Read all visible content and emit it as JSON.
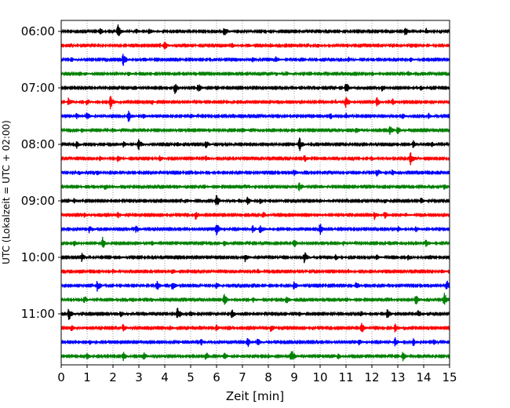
{
  "chart_data": {
    "type": "line",
    "xlabel": "Zeit  [min]",
    "ylabel": "UTC (Lokalzeit = UTC + 02:00)",
    "xlim": [
      0,
      15
    ],
    "x_ticks": [
      "0",
      "1",
      "2",
      "3",
      "4",
      "5",
      "6",
      "7",
      "8",
      "9",
      "10",
      "11",
      "12",
      "13",
      "14",
      "15"
    ],
    "x_grid": "vertical dotted lines at each minute",
    "y_ticks": [
      "06:00",
      "07:00",
      "08:00",
      "09:00",
      "10:00",
      "11:00"
    ],
    "rows_start": "06:00",
    "row_interval_minutes": 15,
    "row_count": 24,
    "color_cycle": [
      "#000000",
      "#ff0000",
      "#0000ff",
      "#008000"
    ],
    "series": [
      {
        "start": "06:00",
        "events": [
          [
            1.5,
            0.5
          ],
          [
            2.2,
            1.0
          ],
          [
            2.9,
            0.3
          ],
          [
            3.4,
            0.4
          ],
          [
            6.3,
            0.7
          ],
          [
            13.3,
            0.6
          ],
          [
            14.1,
            0.4
          ]
        ]
      },
      {
        "start": "06:15",
        "events": [
          [
            3.8,
            0.3
          ],
          [
            4.0,
            0.5
          ],
          [
            6.6,
            0.3
          ],
          [
            7.2,
            0.25
          ],
          [
            8.1,
            0.3
          ],
          [
            9.9,
            0.3
          ]
        ]
      },
      {
        "start": "06:30",
        "events": [
          [
            0.4,
            0.3
          ],
          [
            2.4,
            0.8
          ],
          [
            3.2,
            0.3
          ],
          [
            7.4,
            0.3
          ],
          [
            8.3,
            0.4
          ],
          [
            11.1,
            0.3
          ],
          [
            13.5,
            0.3
          ]
        ]
      },
      {
        "start": "06:45",
        "events": [
          [
            0.9,
            0.3
          ],
          [
            2.6,
            0.3
          ],
          [
            8.3,
            0.25
          ],
          [
            8.7,
            0.3
          ],
          [
            12.0,
            0.3
          ],
          [
            13.4,
            0.3
          ]
        ]
      },
      {
        "start": "07:00",
        "events": [
          [
            4.4,
            0.8
          ],
          [
            5.3,
            0.6
          ],
          [
            6.0,
            0.4
          ],
          [
            11.0,
            0.9
          ],
          [
            12.4,
            0.5
          ],
          [
            13.9,
            0.3
          ]
        ]
      },
      {
        "start": "07:15",
        "events": [
          [
            0.3,
            0.7
          ],
          [
            1.0,
            0.4
          ],
          [
            1.9,
            1.0
          ],
          [
            3.5,
            0.4
          ],
          [
            6.4,
            0.3
          ],
          [
            10.6,
            0.3
          ],
          [
            11.0,
            0.9
          ],
          [
            12.2,
            0.6
          ],
          [
            12.8,
            0.5
          ]
        ]
      },
      {
        "start": "07:30",
        "events": [
          [
            0.6,
            0.4
          ],
          [
            1.0,
            0.5
          ],
          [
            2.6,
            0.8
          ],
          [
            3.2,
            0.3
          ],
          [
            5.0,
            0.3
          ],
          [
            10.4,
            0.4
          ],
          [
            11.0,
            0.5
          ],
          [
            13.2,
            0.3
          ],
          [
            14.2,
            0.4
          ]
        ]
      },
      {
        "start": "07:45",
        "events": [
          [
            0.8,
            0.3
          ],
          [
            2.0,
            0.3
          ],
          [
            7.0,
            0.3
          ],
          [
            11.4,
            0.4
          ],
          [
            12.7,
            0.6
          ],
          [
            13.0,
            0.5
          ]
        ]
      },
      {
        "start": "08:00",
        "events": [
          [
            0.6,
            0.5
          ],
          [
            2.4,
            0.4
          ],
          [
            3.0,
            0.8
          ],
          [
            4.5,
            0.3
          ],
          [
            5.6,
            0.5
          ],
          [
            9.2,
            1.0
          ],
          [
            13.6,
            0.5
          ],
          [
            14.3,
            0.4
          ]
        ]
      },
      {
        "start": "08:15",
        "events": [
          [
            1.5,
            0.3
          ],
          [
            2.2,
            0.5
          ],
          [
            3.8,
            0.4
          ],
          [
            5.6,
            0.4
          ],
          [
            9.4,
            0.5
          ],
          [
            12.0,
            0.3
          ],
          [
            13.5,
            1.0
          ]
        ]
      },
      {
        "start": "08:30",
        "events": [
          [
            0.7,
            0.3
          ],
          [
            1.4,
            0.3
          ],
          [
            5.2,
            0.3
          ],
          [
            9.0,
            0.5
          ],
          [
            12.2,
            0.6
          ],
          [
            12.8,
            0.4
          ]
        ]
      },
      {
        "start": "08:45",
        "events": [
          [
            1.7,
            0.4
          ],
          [
            4.5,
            0.3
          ],
          [
            5.5,
            0.4
          ],
          [
            9.2,
            0.7
          ],
          [
            10.0,
            0.3
          ],
          [
            14.8,
            0.5
          ]
        ]
      },
      {
        "start": "09:00",
        "events": [
          [
            0.5,
            0.3
          ],
          [
            3.2,
            0.3
          ],
          [
            4.8,
            0.3
          ],
          [
            6.0,
            0.9
          ],
          [
            7.2,
            0.5
          ],
          [
            7.7,
            0.4
          ],
          [
            10.0,
            0.3
          ],
          [
            12.5,
            0.3
          ],
          [
            13.9,
            0.4
          ]
        ]
      },
      {
        "start": "09:15",
        "events": [
          [
            0.9,
            0.3
          ],
          [
            2.2,
            0.4
          ],
          [
            5.2,
            0.6
          ],
          [
            7.8,
            0.4
          ],
          [
            9.9,
            0.3
          ],
          [
            12.1,
            0.6
          ],
          [
            12.5,
            0.5
          ],
          [
            13.3,
            0.3
          ]
        ]
      },
      {
        "start": "09:30",
        "events": [
          [
            1.1,
            0.6
          ],
          [
            2.9,
            0.5
          ],
          [
            6.0,
            0.9
          ],
          [
            7.4,
            0.5
          ],
          [
            7.7,
            0.6
          ],
          [
            10.0,
            0.8
          ],
          [
            13.0,
            0.4
          ],
          [
            13.7,
            0.4
          ]
        ]
      },
      {
        "start": "09:45",
        "events": [
          [
            0.5,
            0.4
          ],
          [
            1.6,
            0.8
          ],
          [
            3.5,
            0.3
          ],
          [
            6.3,
            0.4
          ],
          [
            9.0,
            0.6
          ],
          [
            10.9,
            0.3
          ],
          [
            14.1,
            0.5
          ]
        ]
      },
      {
        "start": "10:00",
        "events": [
          [
            0.8,
            0.6
          ],
          [
            2.2,
            0.3
          ],
          [
            7.1,
            0.6
          ],
          [
            9.4,
            0.8
          ],
          [
            10.6,
            0.4
          ],
          [
            12.2,
            0.4
          ],
          [
            13.4,
            0.5
          ]
        ]
      },
      {
        "start": "10:15",
        "events": [
          [
            2.0,
            0.3
          ],
          [
            4.3,
            0.4
          ],
          [
            7.6,
            0.3
          ],
          [
            11.1,
            0.3
          ],
          [
            14.7,
            0.3
          ]
        ]
      },
      {
        "start": "10:30",
        "events": [
          [
            1.4,
            0.8
          ],
          [
            3.7,
            0.7
          ],
          [
            4.3,
            0.6
          ],
          [
            6.0,
            0.4
          ],
          [
            9.0,
            0.6
          ],
          [
            11.4,
            0.5
          ],
          [
            14.9,
            0.7
          ]
        ]
      },
      {
        "start": "10:45",
        "events": [
          [
            0.9,
            0.5
          ],
          [
            3.5,
            0.3
          ],
          [
            6.3,
            0.8
          ],
          [
            7.4,
            0.4
          ],
          [
            8.7,
            0.5
          ],
          [
            11.0,
            0.4
          ],
          [
            13.7,
            0.8
          ],
          [
            14.8,
            0.9
          ]
        ]
      },
      {
        "start": "11:00",
        "events": [
          [
            0.3,
            0.9
          ],
          [
            2.3,
            0.4
          ],
          [
            4.5,
            0.9
          ],
          [
            5.0,
            0.4
          ],
          [
            6.6,
            0.7
          ],
          [
            9.2,
            0.3
          ],
          [
            11.6,
            0.4
          ],
          [
            12.6,
            0.6
          ],
          [
            13.8,
            0.5
          ]
        ]
      },
      {
        "start": "11:15",
        "events": [
          [
            0.4,
            0.5
          ],
          [
            2.4,
            0.5
          ],
          [
            4.2,
            0.3
          ],
          [
            6.0,
            0.4
          ],
          [
            8.1,
            0.5
          ],
          [
            11.6,
            0.8
          ],
          [
            12.9,
            0.6
          ]
        ]
      },
      {
        "start": "11:30",
        "events": [
          [
            1.1,
            0.3
          ],
          [
            5.4,
            0.5
          ],
          [
            7.2,
            0.8
          ],
          [
            7.6,
            0.5
          ],
          [
            11.5,
            0.4
          ],
          [
            12.9,
            0.6
          ],
          [
            13.6,
            0.5
          ],
          [
            14.4,
            0.3
          ]
        ]
      },
      {
        "start": "11:45",
        "events": [
          [
            1.0,
            0.4
          ],
          [
            2.4,
            0.6
          ],
          [
            3.2,
            0.5
          ],
          [
            5.6,
            0.6
          ],
          [
            6.3,
            0.5
          ],
          [
            8.0,
            0.3
          ],
          [
            8.9,
            1.0
          ],
          [
            10.7,
            0.4
          ],
          [
            13.2,
            0.6
          ]
        ]
      }
    ]
  }
}
